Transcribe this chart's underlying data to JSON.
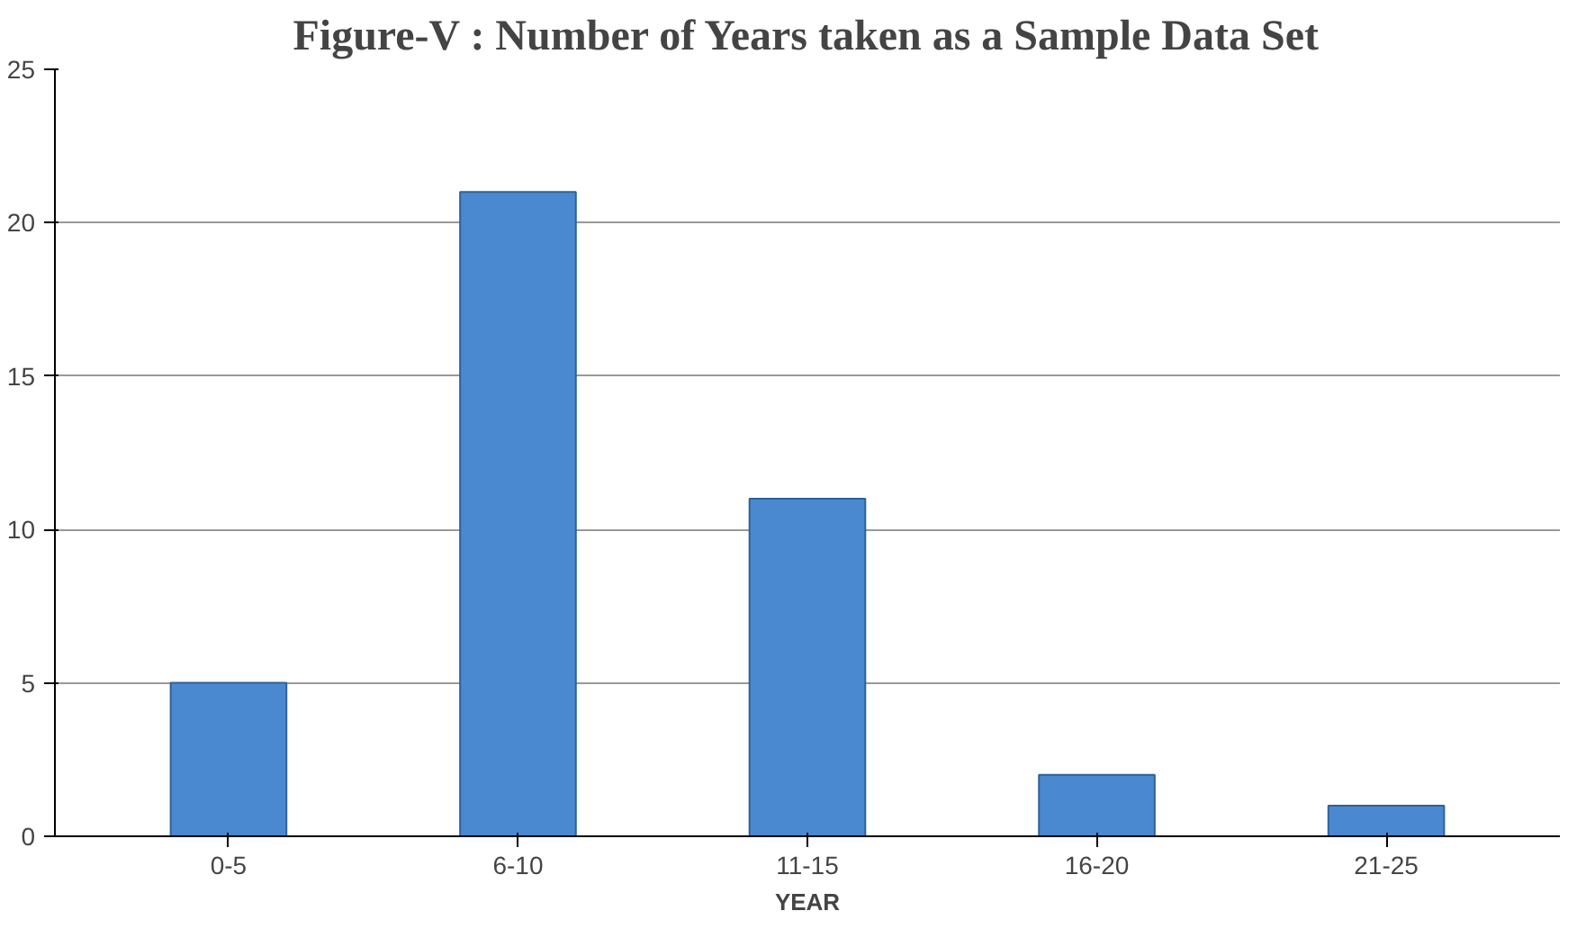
{
  "chart_data": {
    "type": "bar",
    "title": "Figure-V : Number of Years taken as a Sample Data Set",
    "xlabel": "YEAR",
    "categories": [
      "0-5",
      "6-10",
      "11-15",
      "16-20",
      "21-25"
    ],
    "values": [
      5,
      21,
      11,
      2,
      1
    ],
    "color": "#4a89d0",
    "ylim": [
      0,
      25
    ],
    "yticks": [
      0,
      5,
      10,
      15,
      20,
      25
    ],
    "grid": "y"
  }
}
